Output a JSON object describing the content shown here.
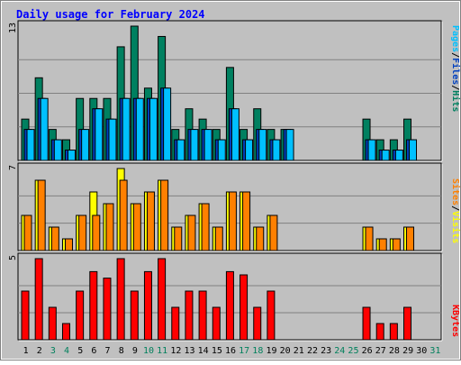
{
  "chart_data": {
    "type": "bar",
    "title": "Daily usage for February 2024",
    "categories": [
      "1",
      "2",
      "3",
      "4",
      "5",
      "6",
      "7",
      "8",
      "9",
      "10",
      "11",
      "12",
      "13",
      "14",
      "15",
      "16",
      "17",
      "18",
      "19",
      "20",
      "21",
      "22",
      "23",
      "24",
      "25",
      "26",
      "27",
      "28",
      "29",
      "30",
      "31"
    ],
    "weekend_days": [
      3,
      4,
      10,
      11,
      17,
      18,
      24,
      25,
      31
    ],
    "panels": [
      {
        "name": "hits_files_pages",
        "scale_max": 13,
        "scale_label": "13",
        "right_label": [
          {
            "text": "Pages",
            "color": "#00c0ff"
          },
          {
            "text": "/",
            "color": "#000000"
          },
          {
            "text": "Files",
            "color": "#0040c0"
          },
          {
            "text": "/",
            "color": "#000000"
          },
          {
            "text": "Hits",
            "color": "#008060"
          }
        ],
        "series": [
          {
            "name": "Hits",
            "color": "#008060",
            "values": [
              4,
              8,
              3,
              2,
              6,
              6,
              6,
              11,
              13,
              7,
              12,
              3,
              5,
              4,
              3,
              9,
              3,
              5,
              3,
              3,
              0,
              0,
              0,
              0,
              0,
              4,
              2,
              2,
              4,
              0,
              0
            ]
          },
          {
            "name": "Files",
            "color": "#0040c0",
            "values": [
              3,
              6,
              2,
              1,
              3,
              5,
              4,
              6,
              6,
              6,
              7,
              2,
              3,
              3,
              2,
              5,
              2,
              3,
              2,
              3,
              0,
              0,
              0,
              0,
              0,
              2,
              1,
              1,
              2,
              0,
              0
            ]
          },
          {
            "name": "Pages",
            "color": "#00c0ff",
            "values": [
              3,
              6,
              2,
              1,
              3,
              5,
              4,
              6,
              6,
              6,
              7,
              2,
              3,
              3,
              2,
              5,
              2,
              3,
              2,
              3,
              0,
              0,
              0,
              0,
              0,
              2,
              1,
              1,
              2,
              0,
              0
            ]
          }
        ]
      },
      {
        "name": "visits_sites",
        "scale_max": 7,
        "scale_label": "7",
        "right_label": [
          {
            "text": "Sites",
            "color": "#ff8000"
          },
          {
            "text": "/",
            "color": "#000000"
          },
          {
            "text": "Visits",
            "color": "#ffff00"
          }
        ],
        "series": [
          {
            "name": "Visits",
            "color": "#ffff00",
            "values": [
              3,
              6,
              2,
              1,
              3,
              5,
              4,
              7,
              4,
              5,
              6,
              2,
              3,
              4,
              2,
              5,
              5,
              2,
              3,
              0,
              0,
              0,
              0,
              0,
              0,
              2,
              1,
              1,
              2,
              0,
              0
            ]
          },
          {
            "name": "Sites",
            "color": "#ff8000",
            "values": [
              3,
              6,
              2,
              1,
              3,
              3,
              4,
              6,
              4,
              5,
              6,
              2,
              3,
              4,
              2,
              5,
              5,
              2,
              3,
              0,
              0,
              0,
              0,
              0,
              0,
              2,
              1,
              1,
              2,
              0,
              0
            ]
          }
        ]
      },
      {
        "name": "kbytes",
        "scale_max": 5,
        "scale_label": "5",
        "right_label": [
          {
            "text": "KBytes",
            "color": "#ff0000"
          }
        ],
        "series": [
          {
            "name": "KBytes",
            "color": "#ff0000",
            "values": [
              3,
              5,
              2,
              1,
              3,
              4.2,
              3.8,
              5,
              3,
              4.2,
              5,
              2,
              3,
              3,
              2,
              4.2,
              4,
              2,
              3,
              0,
              0,
              0,
              0,
              0,
              0,
              2,
              1,
              1,
              2,
              0,
              0
            ]
          }
        ]
      }
    ],
    "colors": {
      "background": "#c0c0c0",
      "title": "#0000ff",
      "weekday_label": "#000000",
      "weekend_label": "#00805c",
      "grid": "#808080"
    }
  }
}
